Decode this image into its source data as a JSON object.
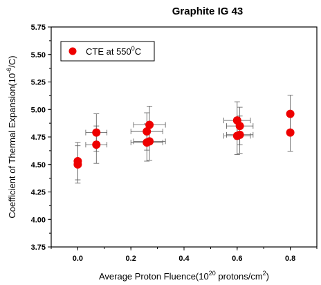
{
  "chart_data": {
    "type": "scatter",
    "title": "Graphite IG 43",
    "xlabel": {
      "main": "Average Proton Fluence(10",
      "exp": "20",
      "post": " protons/cm",
      "exp2": "2",
      "close": ")"
    },
    "ylabel": {
      "main": "Coefficient of Thermal Expansion(10",
      "exp": "-6",
      "post": "/C)"
    },
    "xlim": [
      -0.1,
      0.9
    ],
    "ylim": [
      3.75,
      5.75
    ],
    "xticks": [
      0.0,
      0.2,
      0.4,
      0.6,
      0.8
    ],
    "xtick_labels": [
      "0.0",
      "0.2",
      "0.4",
      "0.6",
      "0.8"
    ],
    "yticks": [
      3.75,
      4.0,
      4.25,
      4.5,
      4.75,
      5.0,
      5.25,
      5.5,
      5.75
    ],
    "ytick_labels": [
      "3.75",
      "4.00",
      "4.25",
      "4.50",
      "4.75",
      "5.00",
      "5.25",
      "5.50",
      "5.75"
    ],
    "legend_position": "top-left",
    "series": [
      {
        "name": {
          "main": "CTE at 550",
          "exp": "0",
          "post": "C"
        },
        "color": "#ee0000",
        "points": [
          {
            "x": 0.0,
            "y": 4.53,
            "xerr": 0.0,
            "yerr": 0.17
          },
          {
            "x": 0.0,
            "y": 4.5,
            "xerr": 0.0,
            "yerr": 0.17
          },
          {
            "x": 0.07,
            "y": 4.79,
            "xerr": 0.04,
            "yerr": 0.17
          },
          {
            "x": 0.07,
            "y": 4.68,
            "xerr": 0.04,
            "yerr": 0.17
          },
          {
            "x": 0.27,
            "y": 4.86,
            "xerr": 0.06,
            "yerr": 0.17
          },
          {
            "x": 0.26,
            "y": 4.8,
            "xerr": 0.06,
            "yerr": 0.17
          },
          {
            "x": 0.27,
            "y": 4.71,
            "xerr": 0.06,
            "yerr": 0.17
          },
          {
            "x": 0.26,
            "y": 4.7,
            "xerr": 0.06,
            "yerr": 0.17
          },
          {
            "x": 0.6,
            "y": 4.9,
            "xerr": 0.05,
            "yerr": 0.17
          },
          {
            "x": 0.61,
            "y": 4.85,
            "xerr": 0.05,
            "yerr": 0.17
          },
          {
            "x": 0.61,
            "y": 4.77,
            "xerr": 0.05,
            "yerr": 0.17
          },
          {
            "x": 0.6,
            "y": 4.76,
            "xerr": 0.05,
            "yerr": 0.17
          },
          {
            "x": 0.8,
            "y": 4.96,
            "xerr": 0.0,
            "yerr": 0.17
          },
          {
            "x": 0.8,
            "y": 4.79,
            "xerr": 0.0,
            "yerr": 0.17
          }
        ]
      }
    ]
  }
}
